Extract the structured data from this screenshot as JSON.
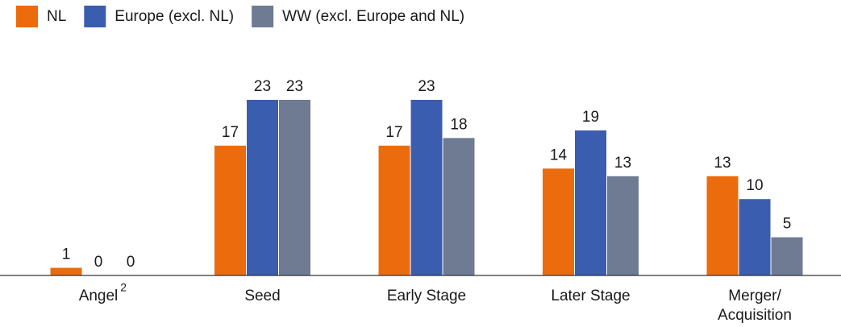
{
  "chart_data": {
    "type": "bar",
    "categories": [
      "Angel",
      "Seed",
      "Early Stage",
      "Later Stage",
      "Merger/ Acquisition"
    ],
    "category_superscripts": [
      "2",
      null,
      null,
      null,
      null
    ],
    "series": [
      {
        "name": "NL",
        "color": "#ec6b0c",
        "values": [
          1,
          17,
          17,
          14,
          13
        ]
      },
      {
        "name": "Europe (excl. NL)",
        "color": "#3a5db0",
        "values": [
          0,
          23,
          23,
          19,
          10
        ]
      },
      {
        "name": "WW (excl. Europe and NL)",
        "color": "#6e7b93",
        "values": [
          0,
          23,
          18,
          13,
          5
        ]
      }
    ],
    "ylim": [
      0,
      25
    ],
    "legend": "top-left"
  }
}
